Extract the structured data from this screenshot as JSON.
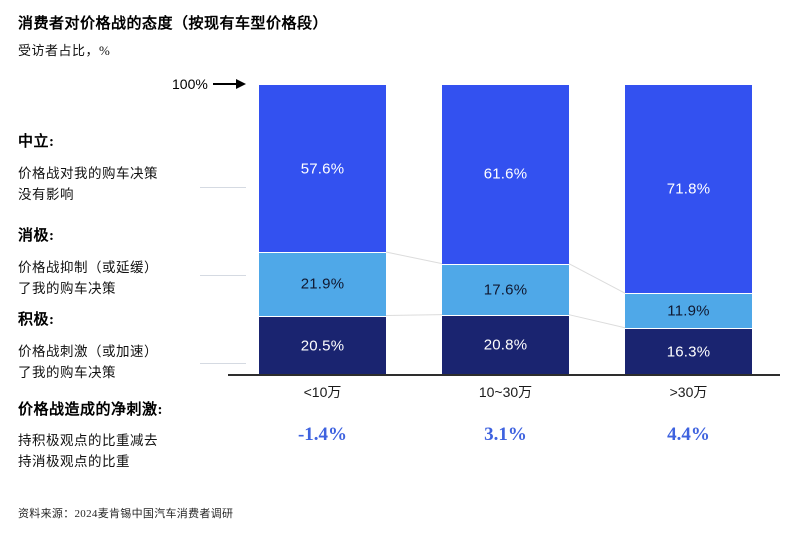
{
  "title": "消费者对价格战的态度（按现有车型价格段）",
  "subtitle": "受访者占比，%",
  "axis_marker": "100%",
  "colors": {
    "neutral": "#3351F0",
    "negative": "#4FA8E8",
    "positive": "#1A2470",
    "label_on_neutral": "#FFFFFF",
    "label_on_negative": "#101830",
    "label_on_positive": "#FFFFFF",
    "net_value_text": "#3E62DF",
    "connector_line": "#DCDCDC",
    "leader_line": "#D5DAE2",
    "axis_line": "#2E2E2E"
  },
  "legend": [
    {
      "term": "中立:",
      "desc": "价格战对我的购车决策\n没有影响"
    },
    {
      "term": "消极:",
      "desc": "价格战抑制（或延缓）\n了我的购车决策"
    },
    {
      "term": "积极:",
      "desc": "价格战刺激（或加速）\n了我的购车决策"
    }
  ],
  "net_section": {
    "term": "价格战造成的净刺激:",
    "desc": "持积极观点的比重减去\n持消极观点的比重"
  },
  "source": "资料来源：2024麦肯锡中国汽车消费者调研",
  "chart_data": {
    "type": "bar",
    "stacked": true,
    "unit": "%",
    "title": "消费者对价格战的态度（按现有车型价格段）",
    "ylabel": "受访者占比，%",
    "ylim": [
      0,
      100
    ],
    "grid": false,
    "legend_position": "left",
    "categories": [
      "<10万",
      "10~30万",
      ">30万"
    ],
    "series_order_top_to_bottom": [
      "中立",
      "消极",
      "积极"
    ],
    "series": [
      {
        "name": "中立",
        "key": "neutral",
        "values": [
          57.6,
          61.6,
          71.8
        ]
      },
      {
        "name": "消极",
        "key": "negative",
        "values": [
          21.9,
          17.6,
          11.9
        ]
      },
      {
        "name": "积极",
        "key": "positive",
        "values": [
          20.5,
          20.8,
          16.3
        ]
      }
    ],
    "net_values": [
      -1.4,
      3.1,
      4.4
    ],
    "net_value_labels": [
      "-1.4%",
      "3.1%",
      "4.4%"
    ]
  }
}
